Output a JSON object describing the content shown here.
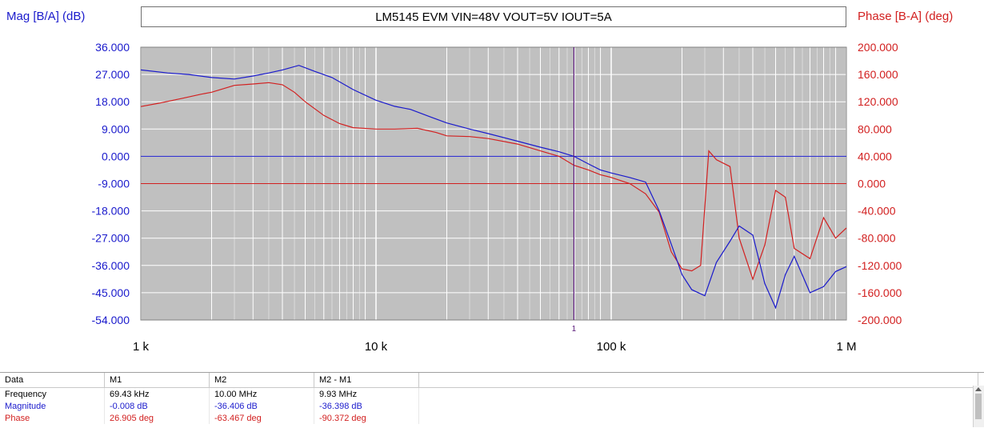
{
  "title": "LM5145 EVM VIN=48V VOUT=5V IOUT=5A",
  "left_axis_title": "Mag [B/A] (dB)",
  "right_axis_title": "Phase [B-A] (deg)",
  "colors": {
    "magnitude": "#1a1acc",
    "phase": "#d22020",
    "plot_bg": "#c0c0c0",
    "grid": "#ffffff"
  },
  "chart_data": {
    "type": "line",
    "x_scale": "log",
    "xlim": [
      1000,
      1000000
    ],
    "x_ticks": [
      1000,
      10000,
      100000,
      1000000
    ],
    "x_tick_labels": [
      "1 k",
      "10 k",
      "100 k",
      "1 M"
    ],
    "y_left": {
      "ylim": [
        -54,
        36
      ],
      "ticks": [
        36,
        27,
        18,
        9,
        0,
        -9,
        -18,
        -27,
        -36,
        -45,
        -54
      ],
      "tick_labels": [
        "36.000",
        "27.000",
        "18.000",
        "9.000",
        "0.000",
        "-9.000",
        "-18.000",
        "-27.000",
        "-36.000",
        "-45.000",
        "-54.000"
      ]
    },
    "y_right": {
      "ylim": [
        -200,
        200
      ],
      "ticks": [
        200,
        160,
        120,
        80,
        40,
        0,
        -40,
        -80,
        -120,
        -160,
        -200
      ],
      "tick_labels": [
        "200.000",
        "160.000",
        "120.000",
        "80.000",
        "40.000",
        "0.000",
        "-40.000",
        "-80.000",
        "-120.000",
        "-160.000",
        "-200.000"
      ]
    },
    "grid": true,
    "marker": {
      "frequency": 69430,
      "label": "1"
    },
    "series": [
      {
        "axis": "left",
        "x": [
          1000,
          1300,
          1600,
          2000,
          2500,
          3000,
          3500,
          4000,
          4700,
          5500,
          6500,
          8000,
          10000,
          12000,
          14000,
          17000,
          20000,
          25000,
          30000,
          40000,
          50000,
          60000,
          69430,
          80000,
          90000,
          100000,
          120000,
          140000,
          160000,
          180000,
          200000,
          220000,
          250000,
          280000,
          320000,
          350000,
          400000,
          450000,
          500000,
          550000,
          600000,
          700000,
          800000,
          900000,
          1000000
        ],
        "y": [
          28.5,
          27.5,
          27.0,
          26.0,
          25.5,
          26.5,
          27.5,
          28.5,
          30.0,
          28.0,
          26.0,
          22.0,
          18.5,
          16.5,
          15.5,
          13.0,
          11.0,
          9.0,
          7.5,
          5.0,
          3.0,
          1.5,
          -0.008,
          -2.5,
          -4.5,
          -5.5,
          -7.0,
          -8.5,
          -18.0,
          -29.0,
          -39.0,
          -44.0,
          -46.0,
          -35.0,
          -28.0,
          -23.0,
          -26.0,
          -42.0,
          -50.0,
          -39.0,
          -33.0,
          -45.0,
          -43.0,
          -38.0,
          -36.4
        ]
      },
      {
        "axis": "right",
        "x": [
          1000,
          1200,
          1500,
          1800,
          2000,
          2500,
          3000,
          3500,
          4000,
          4500,
          5000,
          6000,
          7000,
          8000,
          10000,
          12000,
          15000,
          18000,
          20000,
          25000,
          30000,
          40000,
          50000,
          60000,
          69430,
          80000,
          90000,
          100000,
          120000,
          140000,
          160000,
          180000,
          200000,
          220000,
          240000,
          260000,
          280000,
          320000,
          350000,
          400000,
          450000,
          500000,
          550000,
          600000,
          700000,
          800000,
          900000,
          1000000
        ],
        "y": [
          113,
          118,
          125,
          131,
          134,
          144,
          146,
          148,
          145,
          134,
          120,
          100,
          88,
          82,
          80,
          80,
          81,
          75,
          70,
          69,
          66,
          58,
          48,
          40,
          26.9,
          20,
          13,
          9,
          0,
          -15,
          -42,
          -100,
          -125,
          -128,
          -120,
          48,
          35,
          25,
          -80,
          -140,
          -90,
          -10,
          -20,
          -95,
          -110,
          -50,
          -80,
          -65
        ]
      }
    ]
  },
  "table": {
    "headers": [
      "Data",
      "M1",
      "M2",
      "M2 - M1",
      ""
    ],
    "rows": [
      [
        "Frequency",
        "69.43 kHz",
        "10.00 MHz",
        "9.93 MHz"
      ],
      [
        "Magnitude",
        "-0.008 dB",
        "-36.406 dB",
        "-36.398 dB"
      ],
      [
        "Phase",
        "26.905 deg",
        "-63.467 deg",
        "-90.372 deg"
      ]
    ]
  }
}
